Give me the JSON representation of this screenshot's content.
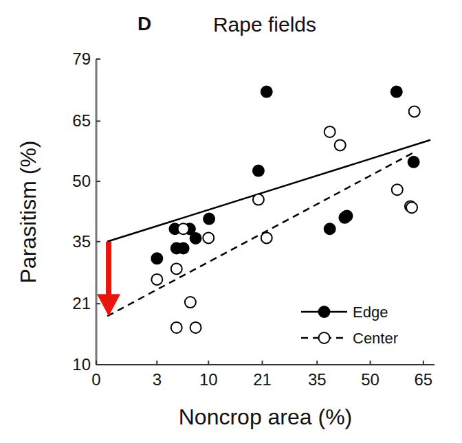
{
  "chart_data": {
    "type": "scatter",
    "title": "Rape fields",
    "panel_label": "D",
    "x_label": "Noncrop area (%)",
    "y_label": "Parasitism (%)",
    "xlim": [
      0,
      68
    ],
    "ylim": [
      10,
      79
    ],
    "xticks": [
      0,
      3,
      10,
      21,
      35,
      50,
      65
    ],
    "yticks": [
      10,
      21,
      35,
      50,
      65,
      79
    ],
    "legend": "lower right",
    "series": [
      {
        "name": "Edge",
        "color": "#000000",
        "marker": "filled-circle",
        "line_style": "solid",
        "x": [
          3,
          5,
          5.2,
          6.1,
          7,
          7.9,
          10.1,
          20.1,
          22,
          38.5,
          42.7,
          43.3,
          57.5,
          62.3
        ],
        "values": [
          31,
          38.1,
          33.4,
          33.4,
          38.1,
          35.8,
          40.6,
          52.7,
          71.9,
          38.1,
          40.9,
          41.3,
          71.9,
          54.9
        ],
        "fit_x": [
          0.1,
          66.9
        ],
        "fit_values": [
          35,
          60.4
        ]
      },
      {
        "name": "Center",
        "color": "#000000",
        "marker": "open-circle",
        "line_style": "dashed",
        "x": [
          3,
          5.2,
          6.1,
          10,
          5.2,
          7.1,
          7.9,
          20.1,
          22,
          38.5,
          41.4,
          57.7,
          61.4,
          61.8,
          62.5
        ],
        "values": [
          26.2,
          28.6,
          38.1,
          35.9,
          16.3,
          21.3,
          16.3,
          45.4,
          35.9,
          62.4,
          59.1,
          47.9,
          43.7,
          43.4,
          67.3
        ],
        "fit_x": [
          0.1,
          62.8
        ],
        "fit_values": [
          18.5,
          57.5
        ]
      }
    ]
  }
}
